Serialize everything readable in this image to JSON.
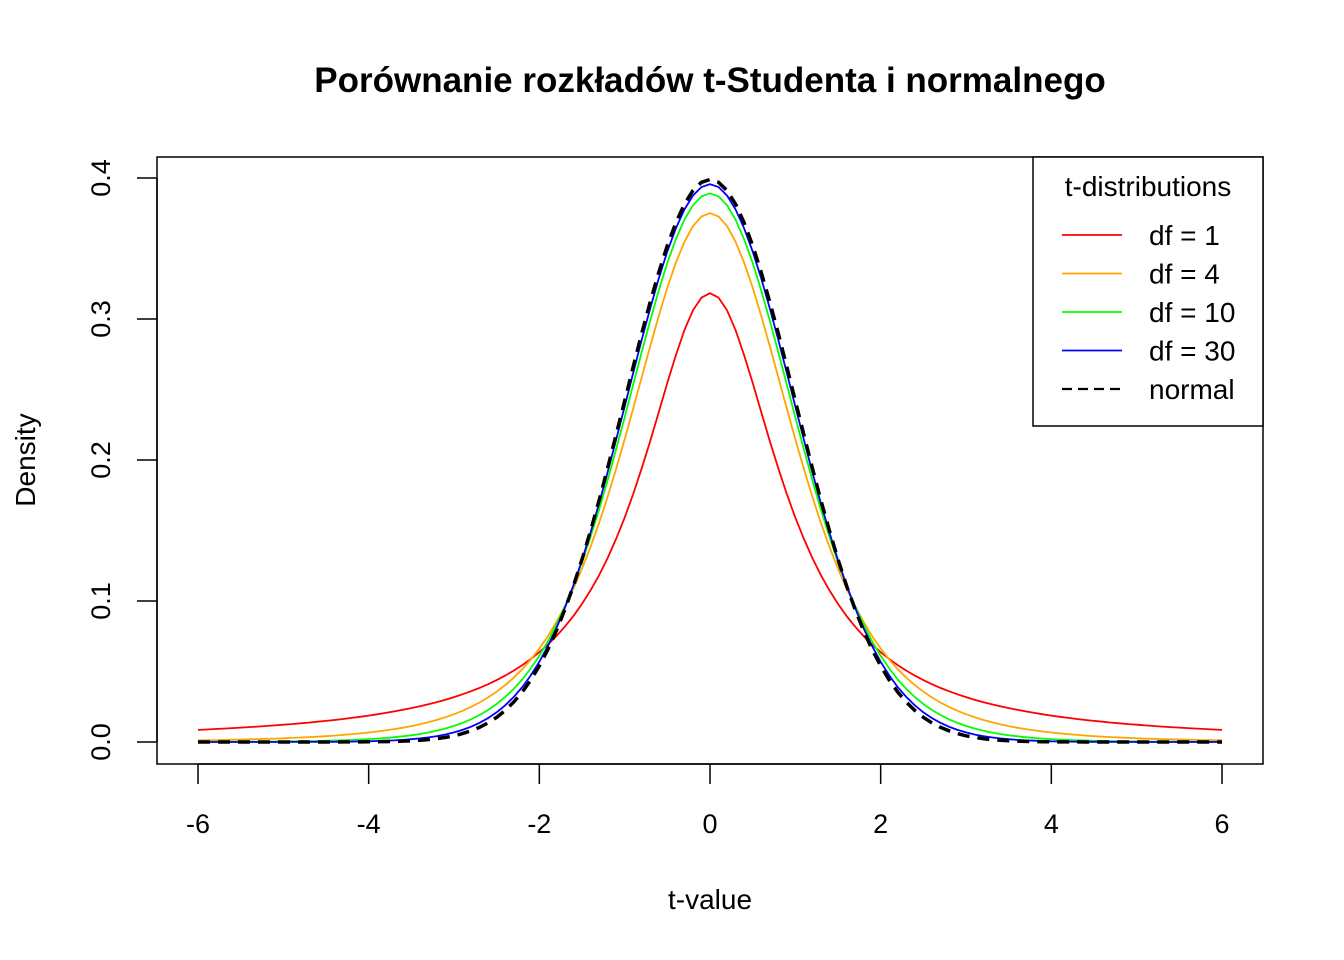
{
  "chart_data": {
    "type": "line",
    "title": "Porównanie rozkładów t-Studenta i normalnego",
    "xlabel": "t-value",
    "ylabel": "Density",
    "xlim": [
      -6,
      6
    ],
    "ylim": [
      0,
      0.4
    ],
    "x_ticks": [
      "-6",
      "-4",
      "-2",
      "0",
      "2",
      "4",
      "6"
    ],
    "y_ticks": [
      "0.0",
      "0.1",
      "0.2",
      "0.3",
      "0.4"
    ],
    "x_sampling": {
      "from": -6,
      "to": 6,
      "step": 0.1
    },
    "grid": false,
    "legend": {
      "title": "t-distributions",
      "placement": "top-right",
      "entries": [
        "df = 1",
        "df = 4",
        "df = 10",
        "df = 30",
        "normal"
      ]
    },
    "series": [
      {
        "name": "df = 1",
        "distribution": "t",
        "df": 1,
        "color": "#ff0000",
        "dash": "solid",
        "peak": 0.318
      },
      {
        "name": "df = 4",
        "distribution": "t",
        "df": 4,
        "color": "#ffa500",
        "dash": "solid",
        "peak": 0.375
      },
      {
        "name": "df = 10",
        "distribution": "t",
        "df": 10,
        "color": "#00ff00",
        "dash": "solid",
        "peak": 0.389
      },
      {
        "name": "df = 30",
        "distribution": "t",
        "df": 30,
        "color": "#0000ff",
        "dash": "solid",
        "peak": 0.396
      },
      {
        "name": "normal",
        "distribution": "normal",
        "color": "#000000",
        "dash": "dashed",
        "peak": 0.399
      }
    ]
  }
}
